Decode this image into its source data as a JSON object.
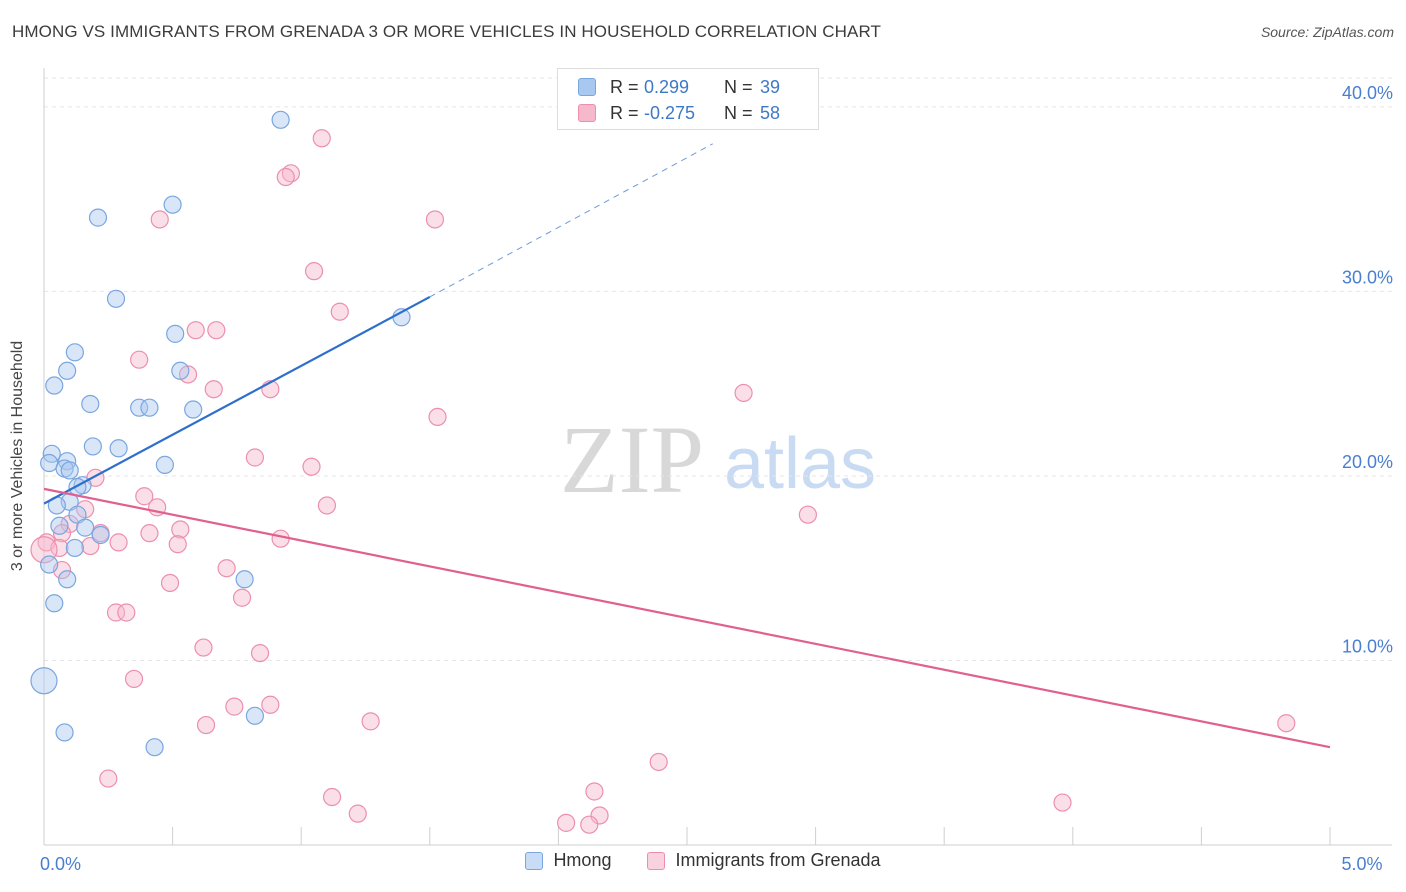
{
  "title": "HMONG VS IMMIGRANTS FROM GRENADA 3 OR MORE VEHICLES IN HOUSEHOLD CORRELATION CHART",
  "source": "Source: ZipAtlas.com",
  "watermark": {
    "zip": "ZIP",
    "atlas": "atlas"
  },
  "stats": {
    "hmong": {
      "r_label": "R =",
      "r_value": "0.299",
      "n_label": "N =",
      "n_value": "39"
    },
    "grenada": {
      "r_label": "R =",
      "r_value": "-0.275",
      "n_label": "N =",
      "n_value": "58"
    }
  },
  "legend": {
    "hmong": "Hmong",
    "grenada": "Immigrants from Grenada"
  },
  "colors": {
    "hmong_fill": "#a9c8f0",
    "hmong_stroke": "#7aa6e0",
    "hmong_line": "#2f6fcc",
    "grenada_fill": "#f6b9cc",
    "grenada_stroke": "#ec8fae",
    "grenada_line": "#e0608f",
    "tick_label": "#4a7fd0",
    "grid": "#e6e6e6"
  },
  "chart_data": {
    "type": "scatter",
    "xlabel": "",
    "ylabel": "3 or more Vehicles in Household",
    "xlim": [
      0,
      5
    ],
    "ylim": [
      0,
      42
    ],
    "x_tick_labels": [
      {
        "value": 0,
        "label": "0.0%"
      },
      {
        "value": 5,
        "label": "5.0%"
      }
    ],
    "x_minor_ticks": [
      0.5,
      1.0,
      1.5,
      2.0,
      2.5,
      3.0,
      3.5,
      4.0,
      4.5,
      5.0
    ],
    "y_ticks": [
      {
        "value": 10,
        "label": "10.0%"
      },
      {
        "value": 20,
        "label": "20.0%"
      },
      {
        "value": 30,
        "label": "30.0%"
      },
      {
        "value": 40,
        "label": "40.0%"
      }
    ],
    "grid": true,
    "series": [
      {
        "name": "Hmong",
        "points": [
          [
            0.92,
            39.3
          ],
          [
            0.5,
            34.7
          ],
          [
            0.21,
            34.0
          ],
          [
            0.28,
            29.6
          ],
          [
            1.39,
            28.6
          ],
          [
            0.51,
            27.7
          ],
          [
            0.12,
            26.7
          ],
          [
            0.09,
            25.7
          ],
          [
            0.53,
            25.7
          ],
          [
            0.04,
            24.9
          ],
          [
            0.18,
            23.9
          ],
          [
            0.37,
            23.7
          ],
          [
            0.41,
            23.7
          ],
          [
            0.58,
            23.6
          ],
          [
            0.19,
            21.6
          ],
          [
            0.29,
            21.5
          ],
          [
            0.03,
            21.2
          ],
          [
            0.09,
            20.8
          ],
          [
            0.02,
            20.7
          ],
          [
            0.47,
            20.6
          ],
          [
            0.08,
            20.4
          ],
          [
            0.1,
            20.3
          ],
          [
            0.15,
            19.5
          ],
          [
            0.13,
            19.4
          ],
          [
            0.1,
            18.6
          ],
          [
            0.05,
            18.4
          ],
          [
            0.13,
            17.9
          ],
          [
            0.06,
            17.3
          ],
          [
            0.16,
            17.2
          ],
          [
            0.22,
            16.8
          ],
          [
            0.12,
            16.1
          ],
          [
            0.02,
            15.2
          ],
          [
            0.09,
            14.4
          ],
          [
            0.78,
            14.4
          ],
          [
            0.04,
            13.1
          ],
          [
            0.0,
            8.9
          ],
          [
            0.82,
            7.0
          ],
          [
            0.08,
            6.1
          ],
          [
            0.43,
            5.3
          ]
        ]
      },
      {
        "name": "Immigrants from Grenada",
        "points": [
          [
            1.08,
            38.3
          ],
          [
            0.96,
            36.4
          ],
          [
            0.94,
            36.2
          ],
          [
            0.45,
            33.9
          ],
          [
            1.52,
            33.9
          ],
          [
            1.05,
            31.1
          ],
          [
            1.15,
            28.9
          ],
          [
            0.59,
            27.9
          ],
          [
            0.67,
            27.9
          ],
          [
            0.37,
            26.3
          ],
          [
            0.56,
            25.5
          ],
          [
            0.66,
            24.7
          ],
          [
            0.88,
            24.7
          ],
          [
            2.72,
            24.5
          ],
          [
            1.53,
            23.2
          ],
          [
            0.82,
            21.0
          ],
          [
            1.04,
            20.5
          ],
          [
            0.2,
            19.9
          ],
          [
            0.39,
            18.9
          ],
          [
            0.44,
            18.3
          ],
          [
            1.1,
            18.4
          ],
          [
            0.16,
            18.2
          ],
          [
            2.97,
            17.9
          ],
          [
            0.1,
            17.4
          ],
          [
            0.07,
            16.9
          ],
          [
            0.22,
            16.9
          ],
          [
            0.41,
            16.9
          ],
          [
            0.53,
            17.1
          ],
          [
            0.92,
            16.6
          ],
          [
            0.01,
            16.4
          ],
          [
            0.06,
            16.1
          ],
          [
            0.29,
            16.4
          ],
          [
            0.18,
            16.2
          ],
          [
            0.52,
            16.3
          ],
          [
            0.07,
            14.9
          ],
          [
            0.71,
            15.0
          ],
          [
            0.49,
            14.2
          ],
          [
            0.77,
            13.4
          ],
          [
            0.28,
            12.6
          ],
          [
            0.32,
            12.6
          ],
          [
            0.62,
            10.7
          ],
          [
            0.84,
            10.4
          ],
          [
            0.35,
            9.0
          ],
          [
            0.74,
            7.5
          ],
          [
            0.88,
            7.6
          ],
          [
            1.27,
            6.7
          ],
          [
            0.63,
            6.5
          ],
          [
            4.83,
            6.6
          ],
          [
            2.39,
            4.5
          ],
          [
            0.25,
            3.6
          ],
          [
            2.14,
            2.9
          ],
          [
            1.12,
            2.6
          ],
          [
            3.96,
            2.3
          ],
          [
            1.22,
            1.7
          ],
          [
            2.16,
            1.6
          ],
          [
            2.03,
            1.2
          ],
          [
            2.12,
            1.1
          ],
          [
            0.0,
            16.0
          ]
        ]
      }
    ],
    "trendlines": [
      {
        "series": "Hmong",
        "x0": 0.0,
        "y0": 18.5,
        "x1": 1.5,
        "y1": 29.7,
        "dashed_to_x": 2.6,
        "dashed_to_y": 38.0
      },
      {
        "series": "Immigrants from Grenada",
        "x0": 0.0,
        "y0": 19.3,
        "x1": 5.0,
        "y1": 5.3
      }
    ]
  }
}
